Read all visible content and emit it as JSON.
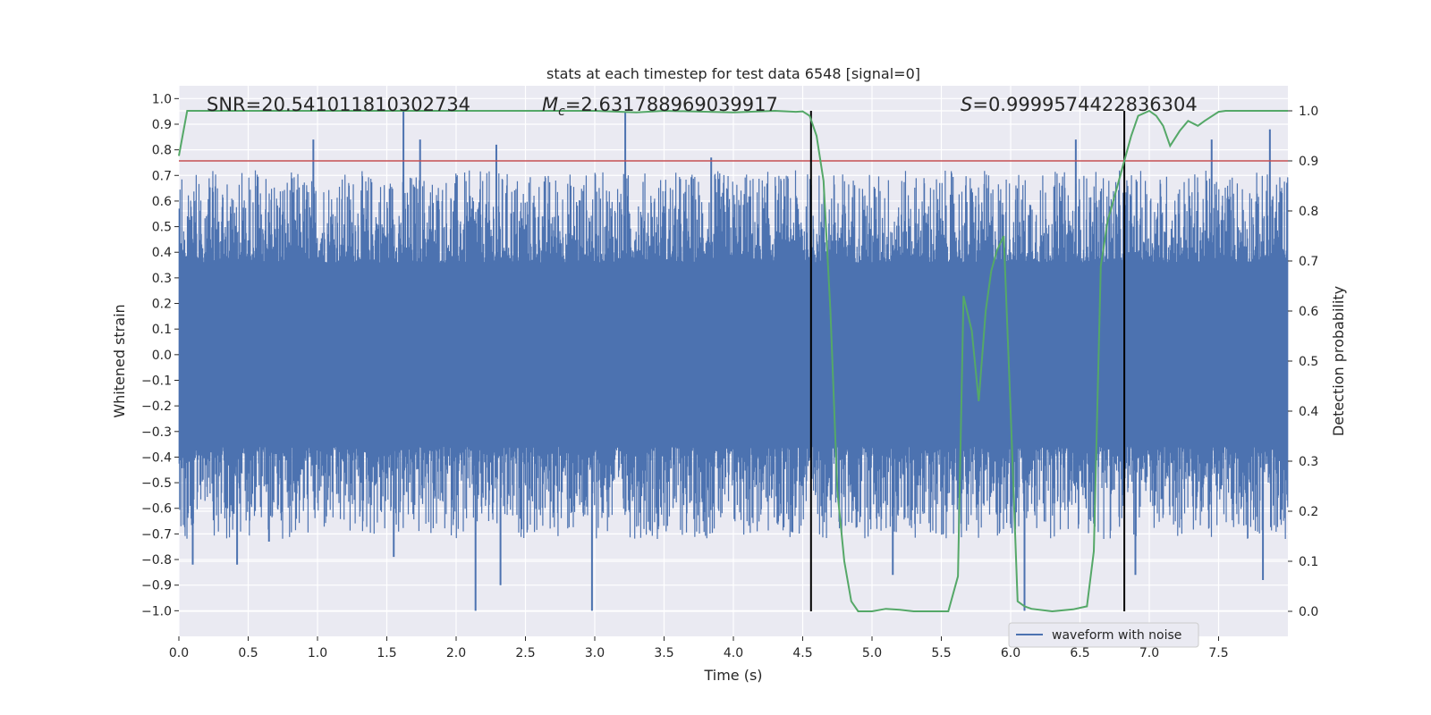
{
  "chart_data": {
    "type": "line",
    "title": "stats at each timestep for test data 6548 [signal=0]",
    "xlabel": "Time (s)",
    "ylabel_left": "Whitened strain",
    "ylabel_right": "Detection probability",
    "xlim": [
      0.0,
      8.0
    ],
    "ylim_left": [
      -1.1,
      1.05
    ],
    "ylim_right": [
      -0.05,
      1.05
    ],
    "x_ticks": [
      0.0,
      0.5,
      1.0,
      1.5,
      2.0,
      2.5,
      3.0,
      3.5,
      4.0,
      4.5,
      5.0,
      5.5,
      6.0,
      6.5,
      7.0,
      7.5
    ],
    "x_tick_labels": [
      "0.0",
      "0.5",
      "1.0",
      "1.5",
      "2.0",
      "2.5",
      "3.0",
      "3.5",
      "4.0",
      "4.5",
      "5.0",
      "5.5",
      "6.0",
      "6.5",
      "7.0",
      "7.5"
    ],
    "y_left_ticks": [
      1.0,
      0.9,
      0.8,
      0.7,
      0.6,
      0.5,
      0.4,
      0.3,
      0.2,
      0.1,
      0.0,
      -0.1,
      -0.2,
      -0.3,
      -0.4,
      -0.5,
      -0.6,
      -0.7,
      -0.8,
      -0.9,
      -1.0
    ],
    "y_left_tick_labels": [
      "1.0",
      "0.9",
      "0.8",
      "0.7",
      "0.6",
      "0.5",
      "0.4",
      "0.3",
      "0.2",
      "0.1",
      "0.0",
      "−0.1",
      "−0.2",
      "−0.3",
      "−0.4",
      "−0.5",
      "−0.6",
      "−0.7",
      "−0.8",
      "−0.9",
      "−1.0"
    ],
    "y_right_ticks": [
      1.0,
      0.9,
      0.8,
      0.7,
      0.6,
      0.5,
      0.4,
      0.3,
      0.2,
      0.1,
      0.0
    ],
    "y_right_tick_labels": [
      "1.0",
      "0.9",
      "0.8",
      "0.7",
      "0.6",
      "0.5",
      "0.4",
      "0.3",
      "0.2",
      "0.1",
      "0.0"
    ],
    "annotations": {
      "snr": "SNR=20.541011810302734",
      "mc_symbol": "M",
      "mc_subscript": "c",
      "mc_value": "=2.631788969039917",
      "s_symbol": "S",
      "s_value": "=0.9999574422836304"
    },
    "legend": {
      "location": "lower-right",
      "entries": [
        "waveform with noise"
      ]
    },
    "threshold": {
      "axis": "right",
      "value": 0.9,
      "color": "#c44e52"
    },
    "vertical_lines": [
      4.56,
      6.82
    ],
    "waveform": {
      "name": "waveform with noise",
      "color": "#4c72b0",
      "duration": 8.0,
      "core_amplitude": 0.36,
      "extreme_spikes": [
        {
          "t": 0.97,
          "v": 0.84
        },
        {
          "t": 1.62,
          "v": 0.95
        },
        {
          "t": 1.74,
          "v": 0.84
        },
        {
          "t": 2.29,
          "v": 0.82
        },
        {
          "t": 3.22,
          "v": 0.95
        },
        {
          "t": 3.84,
          "v": 0.77
        },
        {
          "t": 6.47,
          "v": 0.84
        },
        {
          "t": 7.45,
          "v": 0.84
        },
        {
          "t": 7.87,
          "v": 0.88
        },
        {
          "t": 0.1,
          "v": -0.82
        },
        {
          "t": 0.42,
          "v": -0.82
        },
        {
          "t": 2.14,
          "v": -1.0
        },
        {
          "t": 2.32,
          "v": -0.9
        },
        {
          "t": 2.98,
          "v": -1.0
        },
        {
          "t": 6.1,
          "v": -1.0
        },
        {
          "t": 6.9,
          "v": -0.86
        },
        {
          "t": 7.82,
          "v": -0.88
        },
        {
          "t": 5.15,
          "v": -0.86
        },
        {
          "t": 1.55,
          "v": -0.79
        },
        {
          "t": 0.65,
          "v": -0.73
        }
      ],
      "color_detection": "#55a868"
    },
    "detection_probability": {
      "name": "detection probability",
      "color": "#55a868",
      "t": [
        0.0,
        0.06,
        0.2,
        1.0,
        2.0,
        3.0,
        3.3,
        3.5,
        4.0,
        4.3,
        4.45,
        4.5,
        4.55,
        4.6,
        4.65,
        4.7,
        4.75,
        4.8,
        4.85,
        4.9,
        5.0,
        5.1,
        5.2,
        5.3,
        5.45,
        5.55,
        5.62,
        5.66,
        5.72,
        5.77,
        5.82,
        5.86,
        5.9,
        5.95,
        6.0,
        6.05,
        6.1,
        6.15,
        6.3,
        6.45,
        6.55,
        6.6,
        6.65,
        6.7,
        6.75,
        6.8,
        6.87,
        6.92,
        7.0,
        7.05,
        7.1,
        7.15,
        7.22,
        7.28,
        7.35,
        7.4,
        7.5,
        7.55,
        7.65,
        8.0
      ],
      "values": [
        0.91,
        1.0,
        1.0,
        1.0,
        1.0,
        1.0,
        0.997,
        1.0,
        0.997,
        1.0,
        0.998,
        0.999,
        0.99,
        0.95,
        0.86,
        0.6,
        0.24,
        0.1,
        0.02,
        0.0,
        0.0,
        0.005,
        0.003,
        0.0,
        0.0,
        0.0,
        0.07,
        0.63,
        0.56,
        0.42,
        0.6,
        0.68,
        0.72,
        0.75,
        0.4,
        0.02,
        0.01,
        0.005,
        0.0,
        0.004,
        0.01,
        0.12,
        0.69,
        0.78,
        0.83,
        0.88,
        0.95,
        0.99,
        1.0,
        0.99,
        0.97,
        0.93,
        0.96,
        0.98,
        0.97,
        0.98,
        0.998,
        1.0,
        1.0,
        1.0
      ]
    }
  }
}
